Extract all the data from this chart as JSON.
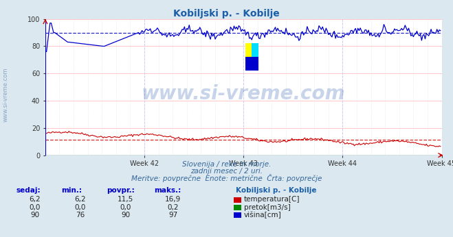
{
  "title": "Kobiljski p. - Kobilje",
  "title_color": "#1a5fa8",
  "bg_color": "#dce8f0",
  "plot_bg_color": "#ffffff",
  "grid_color_h": "#ffbbbb",
  "grid_color_v": "#ccccff",
  "xlim": [
    0,
    336
  ],
  "ylim": [
    0,
    100
  ],
  "yticks": [
    0,
    20,
    40,
    60,
    80,
    100
  ],
  "week_ticks": [
    84,
    168,
    252,
    336
  ],
  "week_labels": [
    "Week 42",
    "Week 43",
    "Week 44",
    "Week 45"
  ],
  "avg_temp": 11.5,
  "avg_height": 90,
  "temp_color": "#cc0000",
  "flow_color": "#008800",
  "height_color": "#0000cc",
  "avg_line_color_temp": "#cc0000",
  "avg_line_color_height": "#0000bb",
  "watermark_text": "www.si-vreme.com",
  "watermark_color": "#2255aa",
  "watermark_alpha": 0.25,
  "subtitle1": "Slovenija / reke in morje.",
  "subtitle2": "zadnji mesec / 2 uri.",
  "subtitle3": "Meritve: povprečne  Enote: metrične  Črta: povprečje",
  "subtitle_color": "#336699",
  "table_header": [
    "sedaj:",
    "min.:",
    "povpr.:",
    "maks.:"
  ],
  "table_rows": [
    [
      "6,2",
      "6,2",
      "11,5",
      "16,9"
    ],
    [
      "0,0",
      "0,0",
      "0,0",
      "0,2"
    ],
    [
      "90",
      "76",
      "90",
      "97"
    ]
  ],
  "legend_label": "Kobiljski p. - Kobilje",
  "legend_items": [
    "temperatura[C]",
    "pretok[m3/s]",
    "višina[cm]"
  ],
  "legend_colors": [
    "#cc0000",
    "#008800",
    "#0000cc"
  ],
  "table_col_color": "#0000cc",
  "logo_colors": [
    "#ffff00",
    "#00ddff",
    "#0000cc"
  ]
}
